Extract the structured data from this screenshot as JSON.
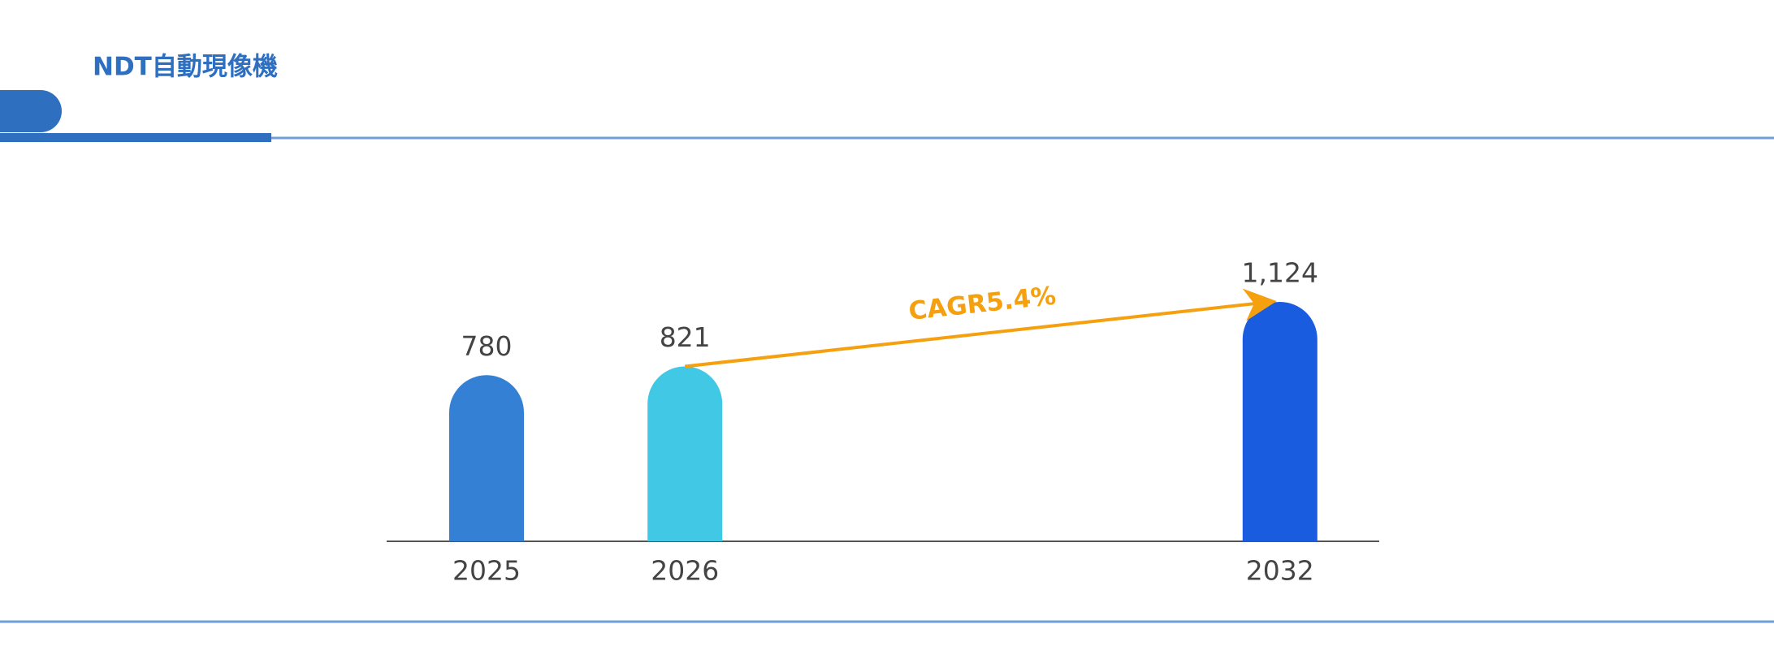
{
  "chart_data": {
    "type": "bar",
    "title": "NDT自動現像機",
    "categories": [
      "2025",
      "2026",
      null,
      null,
      "2032"
    ],
    "values": [
      780,
      821,
      null,
      null,
      1124
    ],
    "value_labels": [
      "780",
      "821",
      null,
      null,
      "1,124"
    ],
    "colors": [
      "#3380d4",
      "#40c8e4",
      null,
      null,
      "#1a5ce0"
    ],
    "ylim": [
      0,
      1600
    ],
    "annotation": "CAGR5.4%",
    "annotation_color": "#f5a00f"
  }
}
